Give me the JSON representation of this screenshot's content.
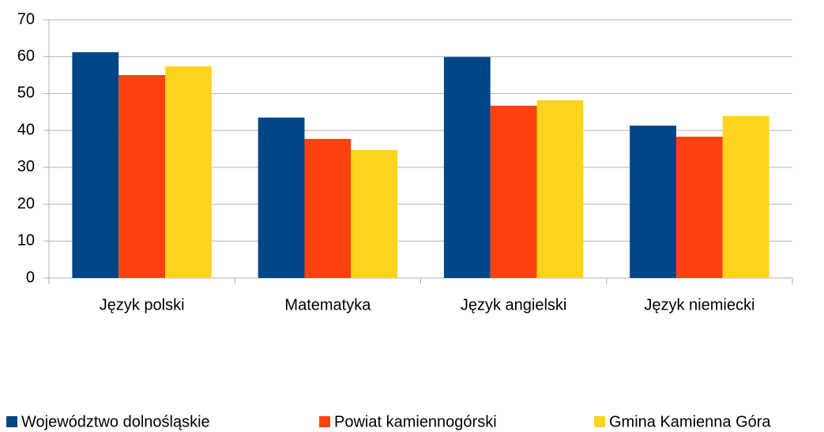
{
  "chart_data": {
    "type": "bar",
    "categories": [
      "Język polski",
      "Matematyka",
      "Język angielski",
      "Język niemiecki"
    ],
    "series": [
      {
        "name": "Województwo dolnośląskie",
        "color": "#004586",
        "values": [
          61.2,
          43.5,
          59.9,
          41.3
        ]
      },
      {
        "name": "Powiat kamiennogórski",
        "color": "#ff420e",
        "values": [
          55.0,
          37.7,
          46.7,
          38.3
        ]
      },
      {
        "name": "Gmina Kamienna Góra",
        "color": "#ffd320",
        "values": [
          57.4,
          34.7,
          48.2,
          43.9
        ]
      }
    ],
    "ylim": [
      0,
      70
    ],
    "yticks": [
      0,
      10,
      20,
      30,
      40,
      50,
      60,
      70
    ],
    "grid": true,
    "legend": "bottom"
  }
}
